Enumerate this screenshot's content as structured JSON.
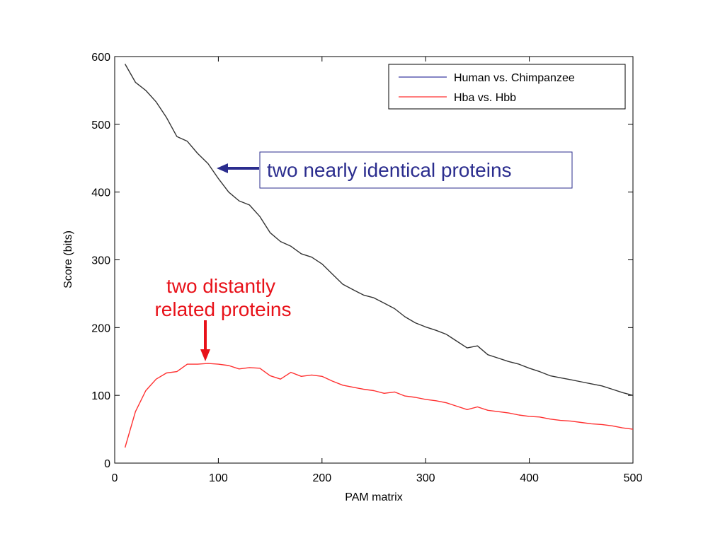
{
  "chart_data": {
    "type": "line",
    "title": "",
    "xlabel": "PAM matrix",
    "ylabel": "Score (bits)",
    "xlim": [
      0,
      500
    ],
    "ylim": [
      0,
      600
    ],
    "xticks": [
      0,
      100,
      200,
      300,
      400,
      500
    ],
    "yticks": [
      0,
      100,
      200,
      300,
      400,
      500,
      600
    ],
    "grid": false,
    "legend": {
      "placement": "top-right"
    },
    "series": [
      {
        "name": "Human vs. Chimpanzee",
        "color": "#333333",
        "legend_color": "#3a3aa0",
        "x": [
          10,
          20,
          30,
          40,
          50,
          60,
          70,
          80,
          90,
          100,
          110,
          120,
          130,
          140,
          150,
          160,
          170,
          180,
          190,
          200,
          210,
          220,
          230,
          240,
          250,
          260,
          270,
          280,
          290,
          300,
          310,
          320,
          330,
          340,
          350,
          360,
          370,
          380,
          390,
          400,
          410,
          420,
          430,
          440,
          450,
          460,
          470,
          480,
          490,
          500
        ],
        "y": [
          589,
          562,
          550,
          533,
          510,
          482,
          475,
          457,
          442,
          420,
          400,
          387,
          381,
          364,
          340,
          327,
          320,
          309,
          304,
          294,
          279,
          264,
          256,
          248,
          244,
          236,
          228,
          216,
          207,
          201,
          196,
          190,
          180,
          170,
          173,
          160,
          155,
          150,
          146,
          140,
          135,
          129,
          126,
          123,
          120,
          117,
          114,
          109,
          104,
          100
        ]
      },
      {
        "name": "Hba vs. Hbb",
        "color": "#ff3030",
        "legend_color": "#ff3030",
        "x": [
          10,
          20,
          30,
          40,
          50,
          60,
          70,
          80,
          90,
          100,
          110,
          120,
          130,
          140,
          150,
          160,
          170,
          180,
          190,
          200,
          210,
          220,
          230,
          240,
          250,
          260,
          270,
          280,
          290,
          300,
          310,
          320,
          330,
          340,
          350,
          360,
          370,
          380,
          390,
          400,
          410,
          420,
          430,
          440,
          450,
          460,
          470,
          480,
          490,
          500
        ],
        "y": [
          23,
          76,
          107,
          124,
          133,
          135,
          146,
          146,
          147,
          146,
          144,
          139,
          141,
          140,
          129,
          124,
          134,
          128,
          130,
          128,
          121,
          115,
          112,
          109,
          107,
          103,
          105,
          99,
          97,
          94,
          92,
          89,
          84,
          79,
          83,
          78,
          76,
          74,
          71,
          69,
          68,
          65,
          63,
          62,
          60,
          58,
          57,
          55,
          52,
          50
        ]
      }
    ],
    "annotations": [
      {
        "id": "identical",
        "text": "two nearly identical proteins",
        "color": "#2b2d8e"
      },
      {
        "id": "distant",
        "lines": [
          "two distantly",
          "related proteins"
        ],
        "color": "#e8121a"
      }
    ]
  }
}
